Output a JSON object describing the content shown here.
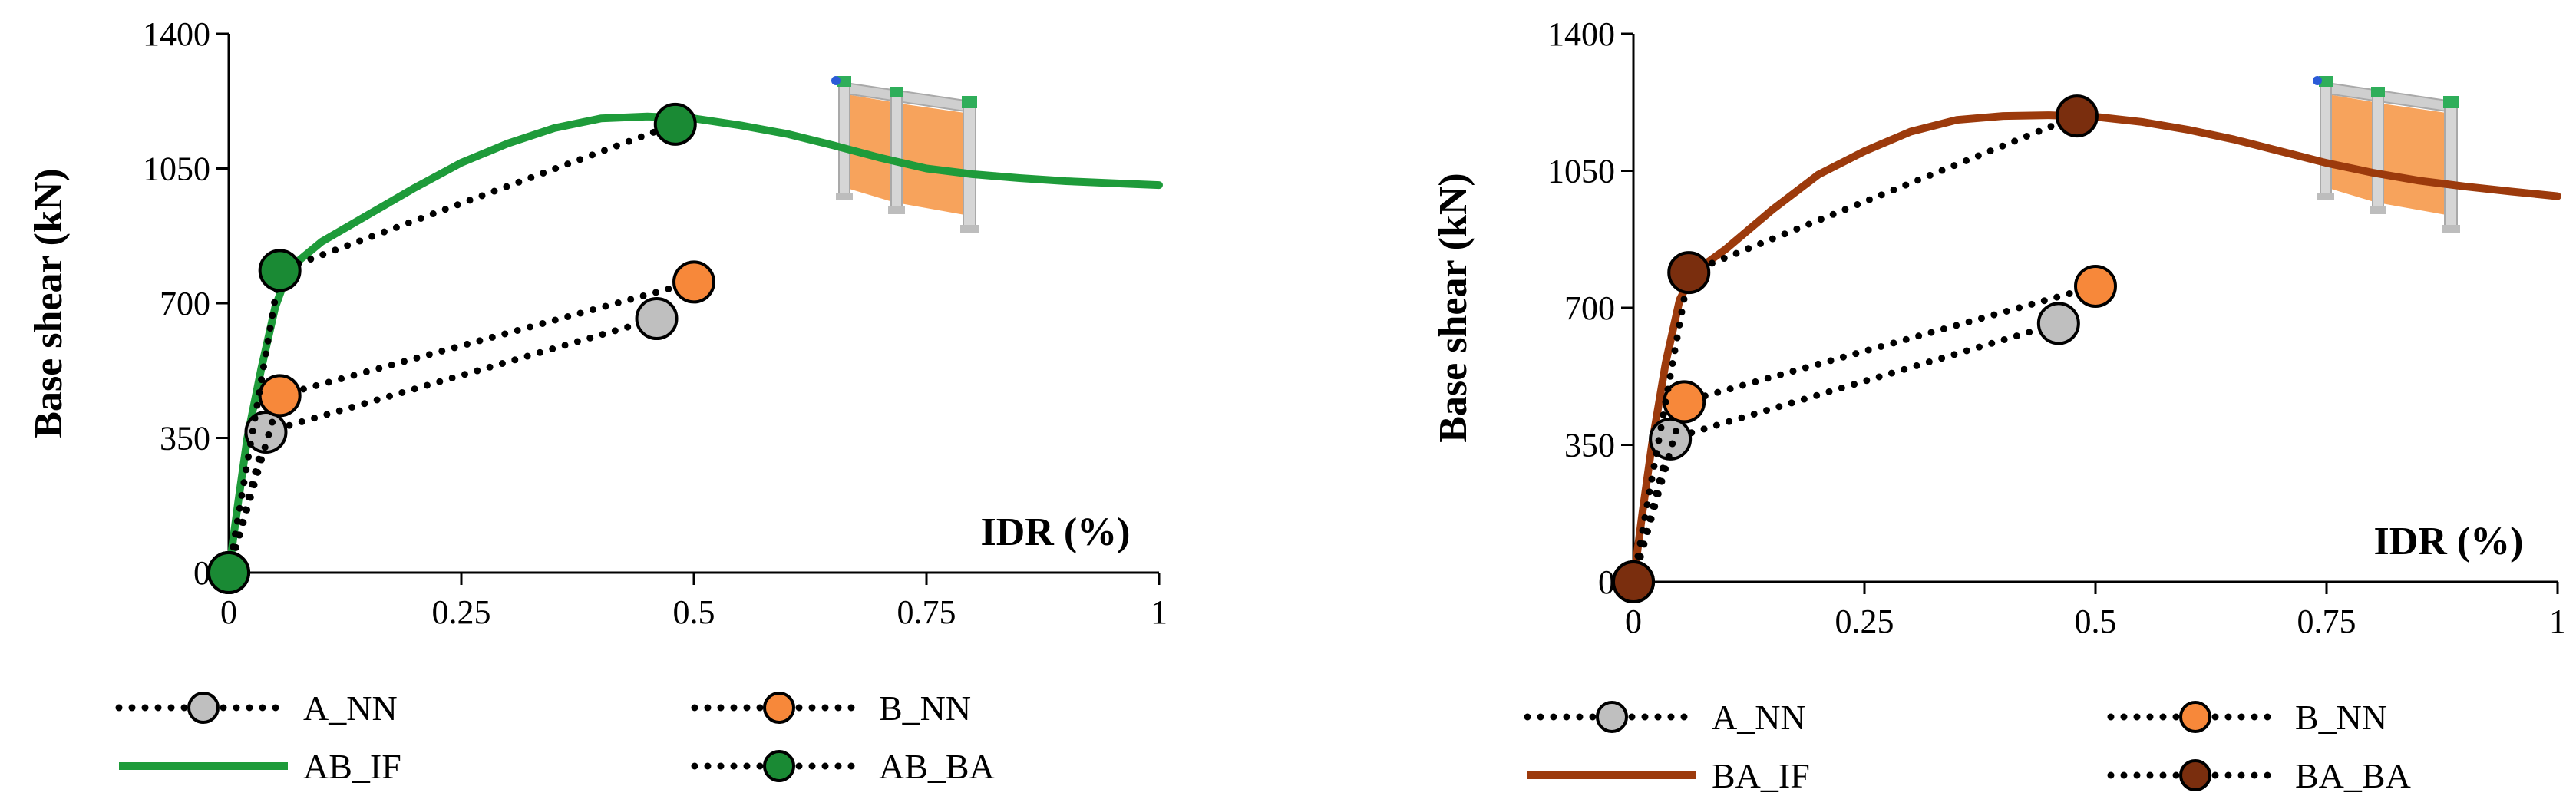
{
  "chart_data": [
    {
      "type": "line",
      "ylabel": "Base shear (kN)",
      "xlabel": "IDR (%)",
      "xlim": [
        0,
        1
      ],
      "ylim": [
        0,
        1400
      ],
      "xticks": [
        "0",
        "0.25",
        "0.5",
        "0.75",
        "1"
      ],
      "yticks": [
        "0",
        "350",
        "700",
        "1050",
        "1400"
      ],
      "grid": false,
      "legend": {
        "placement": "bottom",
        "columns": 2
      },
      "series": [
        {
          "name": "A_NN",
          "style": "dotted-marker",
          "color": "#bfbfbf",
          "points": [
            [
              0,
              0
            ],
            [
              0.04,
              365
            ],
            [
              0.46,
              660
            ]
          ]
        },
        {
          "name": "B_NN",
          "style": "dotted-marker",
          "color": "#f7883a",
          "points": [
            [
              0,
              0
            ],
            [
              0.055,
              460
            ],
            [
              0.5,
              755
            ]
          ]
        },
        {
          "name": "AB_IF",
          "style": "solid",
          "color": "#1e9b3a",
          "points": [
            [
              0,
              0
            ],
            [
              0.01,
              180
            ],
            [
              0.02,
              350
            ],
            [
              0.035,
              530
            ],
            [
              0.05,
              690
            ],
            [
              0.065,
              790
            ],
            [
              0.1,
              860
            ],
            [
              0.15,
              930
            ],
            [
              0.2,
              1000
            ],
            [
              0.25,
              1065
            ],
            [
              0.3,
              1115
            ],
            [
              0.35,
              1155
            ],
            [
              0.4,
              1180
            ],
            [
              0.45,
              1185
            ],
            [
              0.5,
              1180
            ],
            [
              0.55,
              1162
            ],
            [
              0.6,
              1140
            ],
            [
              0.65,
              1110
            ],
            [
              0.7,
              1078
            ],
            [
              0.75,
              1050
            ],
            [
              0.8,
              1035
            ],
            [
              0.85,
              1025
            ],
            [
              0.9,
              1017
            ],
            [
              0.95,
              1012
            ],
            [
              1.0,
              1007
            ]
          ]
        },
        {
          "name": "AB_BA",
          "style": "dotted-marker",
          "color": "#1a8a34",
          "points": [
            [
              0,
              0
            ],
            [
              0.055,
              785
            ],
            [
              0.48,
              1165
            ]
          ]
        }
      ]
    },
    {
      "type": "line",
      "ylabel": "Base shear (kN)",
      "xlabel": "IDR (%)",
      "xlim": [
        0,
        1
      ],
      "ylim": [
        0,
        1400
      ],
      "xticks": [
        "0",
        "0.25",
        "0.5",
        "0.75",
        "1"
      ],
      "yticks": [
        "0",
        "350",
        "700",
        "1050",
        "1400"
      ],
      "grid": false,
      "legend": {
        "placement": "bottom",
        "columns": 2
      },
      "series": [
        {
          "name": "A_NN",
          "style": "dotted-marker",
          "color": "#bfbfbf",
          "points": [
            [
              0,
              0
            ],
            [
              0.04,
              365
            ],
            [
              0.46,
              660
            ]
          ]
        },
        {
          "name": "B_NN",
          "style": "dotted-marker",
          "color": "#f7883a",
          "points": [
            [
              0,
              0
            ],
            [
              0.055,
              460
            ],
            [
              0.5,
              755
            ]
          ]
        },
        {
          "name": "BA_IF",
          "style": "solid",
          "color": "#9c3a0c",
          "points": [
            [
              0,
              0
            ],
            [
              0.01,
              180
            ],
            [
              0.02,
              350
            ],
            [
              0.035,
              560
            ],
            [
              0.05,
              720
            ],
            [
              0.065,
              790
            ],
            [
              0.1,
              850
            ],
            [
              0.15,
              950
            ],
            [
              0.2,
              1040
            ],
            [
              0.25,
              1100
            ],
            [
              0.3,
              1150
            ],
            [
              0.35,
              1180
            ],
            [
              0.4,
              1190
            ],
            [
              0.45,
              1192
            ],
            [
              0.5,
              1188
            ],
            [
              0.55,
              1175
            ],
            [
              0.6,
              1155
            ],
            [
              0.65,
              1130
            ],
            [
              0.7,
              1100
            ],
            [
              0.75,
              1070
            ],
            [
              0.8,
              1045
            ],
            [
              0.85,
              1025
            ],
            [
              0.9,
              1010
            ],
            [
              0.95,
              997
            ],
            [
              1.0,
              985
            ]
          ]
        },
        {
          "name": "BA_BA",
          "style": "dotted-marker",
          "color": "#7a2e0e",
          "points": [
            [
              0,
              0
            ],
            [
              0.06,
              790
            ],
            [
              0.48,
              1190
            ]
          ]
        }
      ]
    }
  ]
}
